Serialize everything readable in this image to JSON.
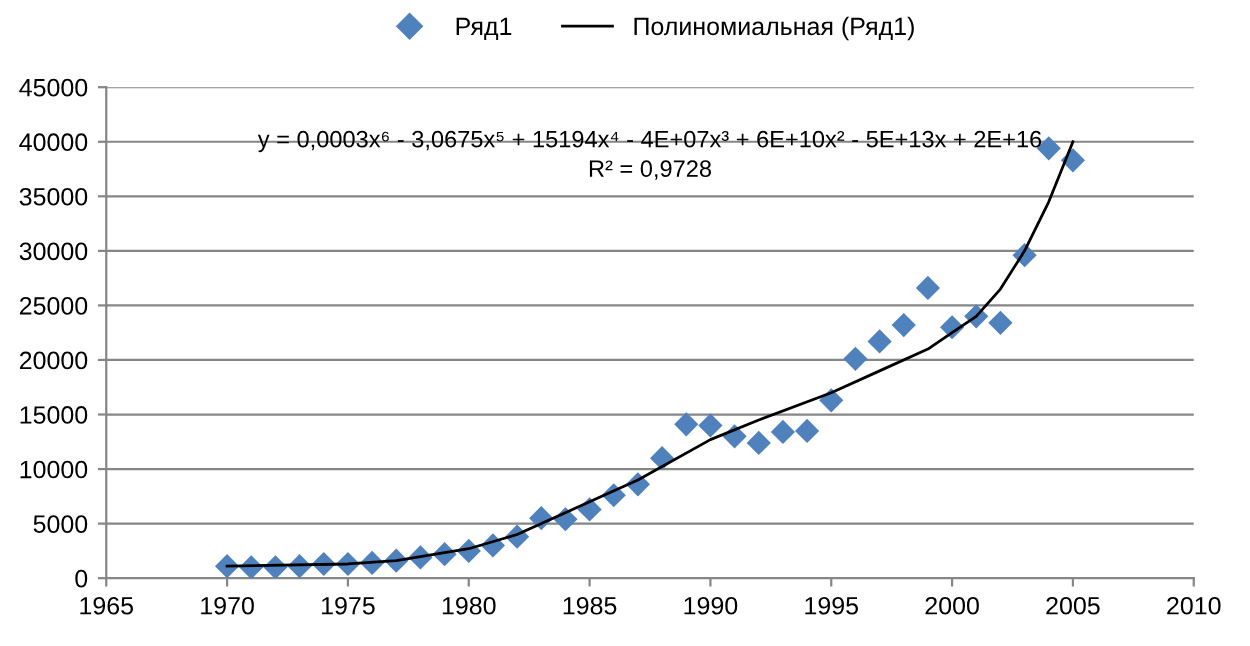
{
  "chart_data": {
    "type": "scatter",
    "series": [
      {
        "name": "Ряд1",
        "color": "#4f81bd",
        "marker": "diamond",
        "x": [
          1970,
          1971,
          1972,
          1973,
          1974,
          1975,
          1976,
          1977,
          1978,
          1979,
          1980,
          1981,
          1982,
          1983,
          1984,
          1985,
          1986,
          1987,
          1988,
          1989,
          1990,
          1991,
          1992,
          1993,
          1994,
          1995,
          1996,
          1997,
          1998,
          1999,
          2000,
          2001,
          2002,
          2003,
          2004,
          2005
        ],
        "values": [
          1100,
          1000,
          1000,
          1100,
          1300,
          1300,
          1400,
          1600,
          1900,
          2200,
          2500,
          3000,
          3800,
          5500,
          5400,
          6300,
          7600,
          8600,
          11000,
          14100,
          14000,
          13000,
          12400,
          13400,
          13500,
          16300,
          20100,
          21700,
          23200,
          26600,
          23000,
          24000,
          23400,
          29600,
          39400,
          38300
        ]
      },
      {
        "name": "Полиномиальная (Ряд1)",
        "type": "line",
        "color": "#000000",
        "marker": "none",
        "line_style": "solid",
        "x": [
          1970,
          1975,
          1977,
          1980,
          1982,
          1985,
          1987,
          1990,
          1992,
          1995,
          1997,
          1999,
          2000,
          2001,
          2002,
          2003,
          2004,
          2005
        ],
        "values": [
          1100,
          1300,
          1600,
          2700,
          4000,
          7000,
          9000,
          12700,
          14500,
          17000,
          19000,
          21000,
          22500,
          24000,
          26500,
          30000,
          34500,
          40000
        ]
      }
    ],
    "xlim": [
      1965,
      2010
    ],
    "xticks": [
      1965,
      1970,
      1975,
      1980,
      1985,
      1990,
      1995,
      2000,
      2005,
      2010
    ],
    "ylim": [
      0,
      45000
    ],
    "yticks": [
      0,
      5000,
      10000,
      15000,
      20000,
      25000,
      30000,
      35000,
      40000,
      45000
    ],
    "grid": "y",
    "legend": "top",
    "annotations": [
      "y = 0,0003x⁶ - 3,0675x⁵ + 15194x⁴ - 4E+07x³ + 6E+10x² - 5E+13x + 2E+16",
      "R² = 0,9728"
    ]
  }
}
